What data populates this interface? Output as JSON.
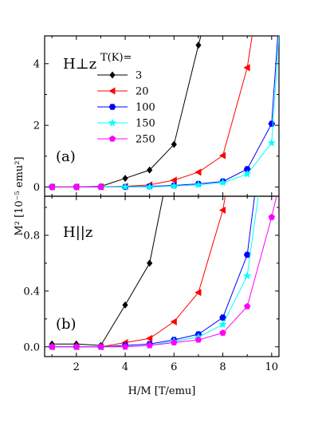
{
  "figure": {
    "xlabel": "H/M [T/emu]",
    "ylabel": "M² [10⁻⁵ emu²]",
    "legend_title": "T(K)="
  },
  "chart_data": [
    {
      "type": "line",
      "panel_label": "(a)",
      "field_label": "H⊥z",
      "xlim": [
        0.7,
        10.3
      ],
      "ylim": [
        -0.3,
        4.9
      ],
      "x_ticks": [
        2,
        4,
        6,
        8,
        10
      ],
      "y_ticks": [
        0,
        2,
        4
      ],
      "legend": {
        "title": "T(K)=",
        "position": "top-left"
      },
      "series": [
        {
          "name": "3",
          "color": "#000000",
          "marker": "diamond",
          "x": [
            1,
            2,
            3,
            4,
            5,
            6,
            7,
            7.1
          ],
          "y": [
            0.0,
            0.0,
            0.02,
            0.28,
            0.55,
            1.38,
            4.6,
            4.9
          ]
        },
        {
          "name": "20",
          "color": "#ff0000",
          "marker": "triangle-left",
          "x": [
            1,
            2,
            3,
            4,
            5,
            6,
            7,
            8,
            9,
            9.2
          ],
          "y": [
            0.0,
            0.0,
            0.0,
            0.02,
            0.07,
            0.22,
            0.48,
            1.02,
            3.87,
            4.9
          ]
        },
        {
          "name": "100",
          "color": "#0000ff",
          "marker": "hexagon",
          "x": [
            1,
            2,
            3,
            4,
            5,
            6,
            7,
            8,
            9,
            10,
            10.25
          ],
          "y": [
            0.0,
            0.0,
            0.0,
            0.0,
            0.02,
            0.05,
            0.1,
            0.18,
            0.58,
            2.05,
            4.9
          ]
        },
        {
          "name": "150",
          "color": "#00ffff",
          "marker": "star",
          "x": [
            1,
            2,
            3,
            4,
            5,
            6,
            7,
            8,
            9,
            10,
            10.3
          ],
          "y": [
            0.0,
            0.0,
            0.0,
            0.0,
            0.0,
            0.03,
            0.07,
            0.14,
            0.42,
            1.43,
            4.9
          ]
        },
        {
          "name": "250",
          "color": "#ff00ff",
          "marker": "pentagon",
          "x": [
            1,
            2,
            3
          ],
          "y": [
            0.0,
            0.0,
            0.0
          ]
        }
      ]
    },
    {
      "type": "line",
      "panel_label": "(b)",
      "field_label": "H||z",
      "xlim": [
        0.7,
        10.3
      ],
      "ylim": [
        -0.07,
        1.08
      ],
      "x_ticks": [
        2,
        4,
        6,
        8,
        10
      ],
      "x_tick_labels": [
        "2",
        "4",
        "6",
        "8",
        "10"
      ],
      "y_ticks": [
        0.0,
        0.4,
        0.8
      ],
      "y_tick_labels": [
        "0.0",
        "0.4",
        "0.8"
      ],
      "series": [
        {
          "name": "3",
          "color": "#000000",
          "marker": "diamond",
          "x": [
            1,
            2,
            3,
            4,
            5,
            5.55
          ],
          "y": [
            0.02,
            0.02,
            0.01,
            0.3,
            0.6,
            1.08
          ]
        },
        {
          "name": "20",
          "color": "#ff0000",
          "marker": "triangle-left",
          "x": [
            1,
            2,
            3,
            4,
            5,
            6,
            7,
            8,
            8.1
          ],
          "y": [
            0.0,
            0.0,
            0.0,
            0.03,
            0.06,
            0.18,
            0.39,
            0.98,
            1.08
          ]
        },
        {
          "name": "100",
          "color": "#0000ff",
          "marker": "hexagon",
          "x": [
            1,
            2,
            3,
            4,
            5,
            6,
            7,
            8,
            9,
            9.3
          ],
          "y": [
            0.0,
            0.0,
            0.0,
            0.01,
            0.02,
            0.05,
            0.09,
            0.21,
            0.66,
            1.08
          ]
        },
        {
          "name": "150",
          "color": "#00ffff",
          "marker": "star",
          "x": [
            1,
            2,
            3,
            4,
            5,
            6,
            7,
            8,
            9,
            9.45
          ],
          "y": [
            0.0,
            0.0,
            0.0,
            0.0,
            0.01,
            0.04,
            0.07,
            0.16,
            0.51,
            1.08
          ]
        },
        {
          "name": "250",
          "color": "#ff00ff",
          "marker": "pentagon",
          "x": [
            1,
            2,
            3,
            4,
            5,
            6,
            7,
            8,
            9,
            10,
            10.2
          ],
          "y": [
            0.0,
            0.0,
            0.0,
            0.0,
            0.01,
            0.03,
            0.05,
            0.1,
            0.29,
            0.93,
            1.08
          ]
        }
      ]
    }
  ]
}
